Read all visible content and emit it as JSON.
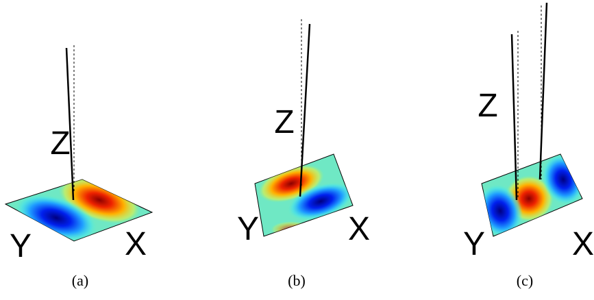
{
  "panels": [
    {
      "z_label": "Z",
      "y_label": "Y",
      "x_label": "X",
      "caption": "(a)"
    },
    {
      "z_label": "Z",
      "y_label": "Y",
      "x_label": "X",
      "caption": "(b)"
    },
    {
      "z_label": "Z",
      "y_label": "Y",
      "x_label": "X",
      "caption": "(c)"
    }
  ]
}
